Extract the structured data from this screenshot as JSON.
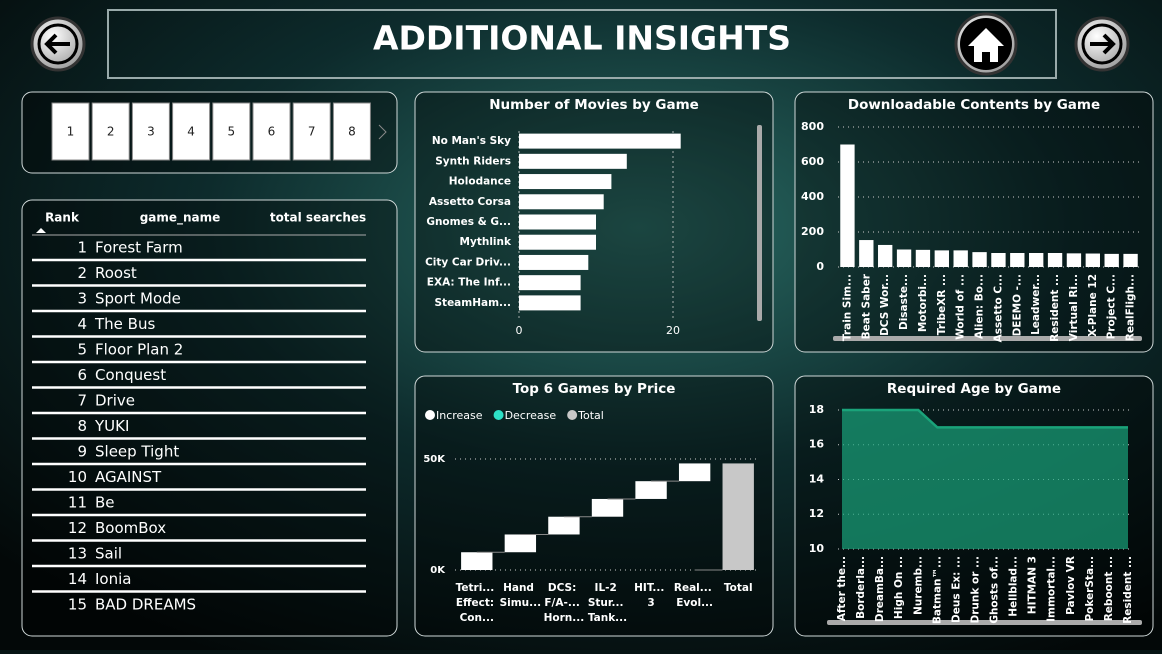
{
  "header": {
    "title": "ADDITIONAL INSIGHTS"
  },
  "pages": [
    "1",
    "2",
    "3",
    "4",
    "5",
    "6",
    "7",
    "8"
  ],
  "table": {
    "columns": [
      "Rank",
      "game_name",
      "total searches"
    ],
    "rows": [
      [
        1,
        "Forest Farm"
      ],
      [
        2,
        "Roost"
      ],
      [
        3,
        "Sport Mode"
      ],
      [
        4,
        "The Bus"
      ],
      [
        5,
        "Floor Plan 2"
      ],
      [
        6,
        "Conquest"
      ],
      [
        7,
        "Drive"
      ],
      [
        8,
        "YUKI"
      ],
      [
        9,
        "Sleep Tight"
      ],
      [
        10,
        "AGAINST"
      ],
      [
        11,
        "Be"
      ],
      [
        12,
        "BoomBox"
      ],
      [
        13,
        "Sail"
      ],
      [
        14,
        "Ionia"
      ],
      [
        15,
        "BAD DREAMS"
      ]
    ]
  },
  "chart_data": [
    {
      "type": "bar",
      "horizontal": true,
      "title": "Number of Movies by Game",
      "categories": [
        "No Man's Sky",
        "Synth Riders",
        "Holodance",
        "Assetto Corsa",
        "Gnomes & G...",
        "Mythlink",
        "City Car Driv...",
        "EXA: The Inf...",
        "SteamHam..."
      ],
      "values": [
        21,
        14,
        12,
        11,
        10,
        10,
        9,
        8,
        8
      ],
      "color": "#ffffff",
      "xlim": [
        0,
        30
      ],
      "xticks": [
        0,
        20
      ],
      "grid": true
    },
    {
      "type": "bar",
      "title": "Downloadable Contents by Game",
      "categories": [
        "Train Sim...",
        "Beat Saber",
        "DCS Wor...",
        "Disaste...",
        "Motorbi...",
        "TribeXR ...",
        "World of ...",
        "Alien: Bo...",
        "Assetto C...",
        "DEEMO -...",
        "Leadwer...",
        "Resident ...",
        "Virtual Ri...",
        "X-Plane 12",
        "Project C...",
        "RealFligh..."
      ],
      "values": [
        700,
        154,
        126,
        100,
        98,
        95,
        95,
        85,
        80,
        80,
        80,
        80,
        78,
        77,
        75,
        75
      ],
      "color": "#ffffff",
      "ylim": [
        0,
        800
      ],
      "yticks": [
        0,
        200,
        400,
        600,
        800
      ],
      "grid": true
    },
    {
      "type": "waterfall",
      "title": "Top 6 Games by Price",
      "categories": [
        "Tetri... Effect: Con...",
        "Hand Simu...",
        "DCS: F/A-... Horn...",
        "IL-2 Stur... Tank...",
        "HIT... 3",
        "Real... Evol...",
        "Total"
      ],
      "series": [
        {
          "name": "Increase",
          "color": "#ffffff",
          "values": [
            8000,
            8000,
            8000,
            8000,
            8000,
            8000,
            null
          ]
        },
        {
          "name": "Decrease",
          "color": "#2de0c6",
          "values": [
            null,
            null,
            null,
            null,
            null,
            null,
            null
          ]
        },
        {
          "name": "Total",
          "color": "#c8c8c8",
          "values": [
            null,
            null,
            null,
            null,
            null,
            null,
            48000
          ]
        }
      ],
      "ylim": [
        0,
        54000
      ],
      "yticks": [
        {
          "value": 0,
          "label": "0K"
        },
        {
          "value": 50000,
          "label": "50K"
        }
      ],
      "grid": true
    },
    {
      "type": "area",
      "title": "Required Age by Game",
      "categories": [
        "After the...",
        "Borderla...",
        "DreamBa...",
        "High On ...",
        "Nuremb...",
        "Batman™...",
        "Deus Ex: ...",
        "Drunk or ...",
        "Ghosts of...",
        "Hellblad...",
        "HITMAN 3",
        "Immortal...",
        "Pavlov VR",
        "PokerSta...",
        "Reboont ...",
        "Resident ..."
      ],
      "values": [
        18,
        18,
        18,
        18,
        18,
        17,
        17,
        17,
        17,
        17,
        17,
        17,
        17,
        17,
        17,
        17
      ],
      "color": "#1aa37a",
      "ylim": [
        10,
        18.5
      ],
      "yticks": [
        10,
        12,
        14,
        16,
        18
      ],
      "grid": true
    }
  ]
}
